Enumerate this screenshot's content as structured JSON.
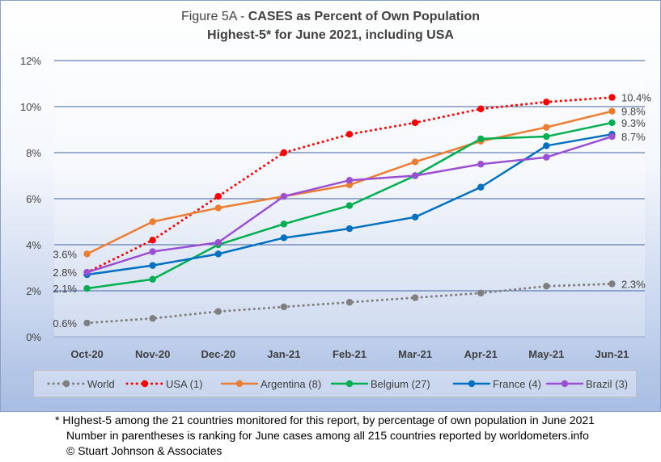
{
  "title": {
    "prefix": "Figure 5A - ",
    "main": "CASES as Percent of Own Population",
    "line2": "Highest-5* for June 2021, including USA"
  },
  "footnotes": [
    "* HIghest-5 among the 21 countries monitored for this report, by percentage of own population in June 2021",
    "Number in parentheses is ranking for June cases among all 215 countries reported by worldometers.info",
    "© Stuart Johnson & Associates"
  ],
  "chart_data": {
    "type": "line",
    "categories": [
      "Oct-20",
      "Nov-20",
      "Dec-20",
      "Jan-21",
      "Feb-21",
      "Mar-21",
      "Apr-21",
      "May-21",
      "Jun-21"
    ],
    "ylim": [
      0,
      12
    ],
    "yticks": [
      0,
      2,
      4,
      6,
      8,
      10,
      12
    ],
    "ytick_labels": [
      "0%",
      "2%",
      "4%",
      "6%",
      "8%",
      "10%",
      "12%"
    ],
    "grid": true,
    "legend_position": "bottom",
    "series": [
      {
        "name": "World",
        "color": "#7f7f7f",
        "dashed": true,
        "values": [
          0.6,
          0.8,
          1.1,
          1.3,
          1.5,
          1.7,
          1.9,
          2.2,
          2.3
        ]
      },
      {
        "name": "USA (1)",
        "color": "#ff0000",
        "dashed": true,
        "values": [
          2.8,
          4.2,
          6.1,
          8.0,
          8.8,
          9.3,
          9.9,
          10.2,
          10.4
        ]
      },
      {
        "name": "Argentina (8)",
        "color": "#ed7d31",
        "dashed": false,
        "values": [
          3.6,
          5.0,
          5.6,
          6.1,
          6.6,
          7.6,
          8.5,
          9.1,
          9.8
        ]
      },
      {
        "name": "Belgium (27)",
        "color": "#00b050",
        "dashed": false,
        "values": [
          2.1,
          2.5,
          4.0,
          4.9,
          5.7,
          7.0,
          8.6,
          8.7,
          9.3
        ]
      },
      {
        "name": "France (4)",
        "color": "#0070c0",
        "dashed": false,
        "values": [
          2.7,
          3.1,
          3.6,
          4.3,
          4.7,
          5.2,
          6.5,
          8.3,
          8.8
        ]
      },
      {
        "name": "Brazil (3)",
        "color": "#9b4fd3",
        "dashed": false,
        "values": [
          2.8,
          3.7,
          4.1,
          6.1,
          6.8,
          7.0,
          7.5,
          7.8,
          8.7
        ]
      }
    ],
    "start_labels": [
      "0.6%",
      "2.1%",
      "2.8%",
      "3.6%"
    ],
    "end_labels": [
      "10.4%",
      "9.8%",
      "9.3%",
      "8.7%",
      "2.3%"
    ]
  }
}
